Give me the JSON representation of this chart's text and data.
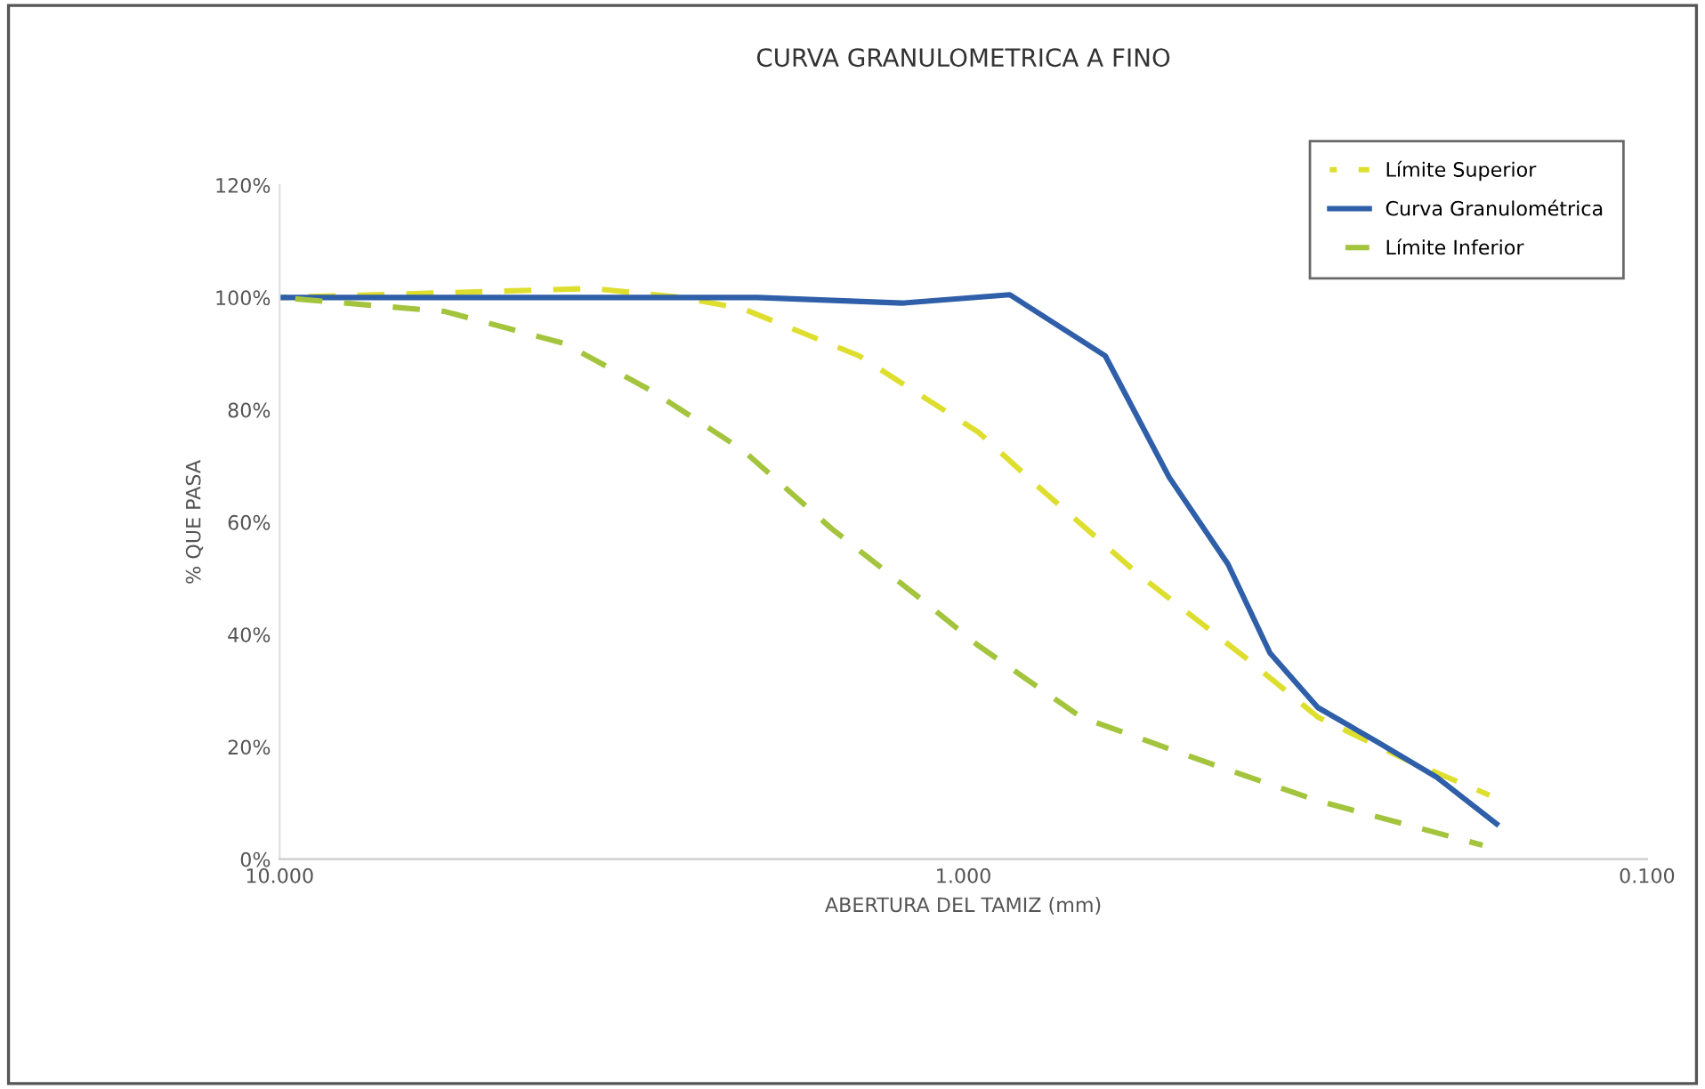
{
  "chart_data": {
    "type": "line",
    "title": "CURVA GRANULOMETRICA A FINO",
    "xlabel": "ABERTURA DEL TAMIZ (mm)",
    "ylabel": "% QUE PASA",
    "log": "x",
    "xlim": [
      10,
      0.1
    ],
    "xticks": [
      {
        "value": 10,
        "label": "10.000"
      },
      {
        "value": 1,
        "label": "1.000"
      },
      {
        "value": 0.1,
        "label": "0.100"
      }
    ],
    "ylim": [
      0,
      120
    ],
    "yticks": [
      {
        "value": 0,
        "label": "0%"
      },
      {
        "value": 20,
        "label": "20%"
      },
      {
        "value": 40,
        "label": "40%"
      },
      {
        "value": 60,
        "label": "60%"
      },
      {
        "value": 80,
        "label": "80%"
      },
      {
        "value": 100,
        "label": "100%"
      },
      {
        "value": 120,
        "label": "120%"
      }
    ],
    "grid": false,
    "legend": "top right",
    "marker": "none",
    "series": [
      {
        "name": "Límite Superior",
        "color": "#dede2e",
        "line_style": "dashed",
        "x": [
          10,
          3.48,
          2.58,
          2.1,
          1.42,
          0.95,
          0.78,
          0.553,
          0.386,
          0.303,
          0.225,
          0.17
        ],
        "values": [
          100,
          101.6,
          100,
          98,
          89.6,
          76,
          66.5,
          50.6,
          35.8,
          25.3,
          17.7,
          11.4
        ]
      },
      {
        "name": "Curva Granulométrica",
        "color": "#2e5fa8",
        "line_style": "solid",
        "x": [
          10,
          2,
          1.23,
          0.855,
          0.62,
          0.5,
          0.41,
          0.356,
          0.303,
          0.249,
          0.203,
          0.166
        ],
        "values": [
          100,
          100,
          99,
          100.5,
          89.6,
          68,
          52.5,
          36.7,
          27,
          21,
          14.6,
          6.3
        ]
      },
      {
        "name": "Límite Inferior",
        "color": "#a3c43c",
        "line_style": "dashed",
        "x": [
          10,
          5.73,
          3.83,
          2.84,
          2.1,
          1.56,
          1.15,
          0.95,
          0.673,
          0.43,
          0.303,
          0.174
        ],
        "values": [
          100,
          97.5,
          91.8,
          83.2,
          72.8,
          58.9,
          46.2,
          38,
          25.3,
          16.8,
          10.4,
          2.5
        ]
      }
    ]
  }
}
